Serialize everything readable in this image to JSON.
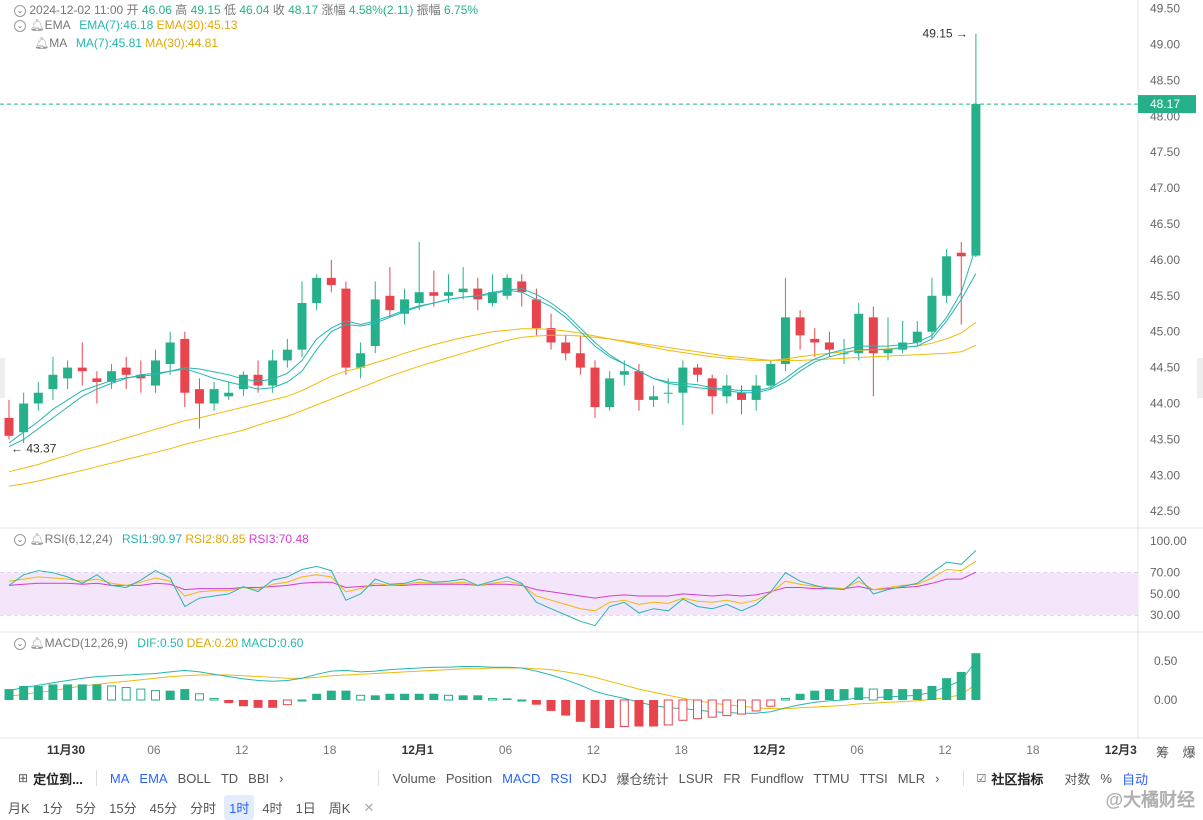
{
  "header": {
    "date": "2024-12-02 11:00",
    "open_label": "开",
    "open": "46.06",
    "high_label": "高",
    "high": "49.15",
    "low_label": "低",
    "low": "46.04",
    "close_label": "收",
    "close": "48.17",
    "change_label": "涨幅",
    "change": "4.58%(2.11)",
    "amplitude_label": "振幅",
    "amplitude": "6.75%"
  },
  "indicators": {
    "ema": {
      "name": "EMA",
      "ema7": "EMA(7):46.18",
      "ema30": "EMA(30):45.13"
    },
    "ma": {
      "name": "MA",
      "ma7": "MA(7):45.81",
      "ma30": "MA(30):44.81"
    },
    "rsi": {
      "name": "RSI(6,12,24)",
      "rsi1": "RSI1:90.97",
      "rsi2": "RSI2:80.85",
      "rsi3": "RSI3:70.48"
    },
    "macd": {
      "name": "MACD(12,26,9)",
      "dif": "DIF:0.50",
      "dea": "DEA:0.20",
      "macd": "MACD:0.60"
    }
  },
  "annotations": {
    "high_marker": "49.15",
    "low_marker": "43.37",
    "last_price": "48.17"
  },
  "colors": {
    "up": "#26b08a",
    "down": "#e8444e",
    "ema_fast": "#26b6b0",
    "ema_slow": "#f0b90b",
    "rsi1": "#26b6b0",
    "rsi2": "#f0b90b",
    "rsi3": "#d63ad0"
  },
  "chart_data": {
    "type": "candlestick",
    "price_axis": {
      "ticks": [
        "49.50",
        "49.00",
        "48.50",
        "48.00",
        "47.50",
        "47.00",
        "46.50",
        "46.00",
        "45.50",
        "45.00",
        "44.50",
        "44.00",
        "43.50",
        "43.00",
        "42.50"
      ],
      "range": [
        42.28,
        49.55
      ]
    },
    "rsi_axis": {
      "ticks": [
        "100.00",
        "70.00",
        "50.00",
        "30.00"
      ]
    },
    "macd_axis": {
      "ticks": [
        "0.50",
        "0.00"
      ]
    },
    "x_ticks": [
      "11月30",
      "06",
      "12",
      "18",
      "12月1",
      "06",
      "12",
      "18",
      "12月2",
      "06",
      "12",
      "18",
      "12月3"
    ],
    "candles": [
      [
        43.8,
        43.55,
        44.05,
        43.5
      ],
      [
        43.6,
        44.0,
        44.15,
        43.45
      ],
      [
        44.0,
        44.15,
        44.3,
        43.9
      ],
      [
        44.2,
        44.4,
        44.65,
        44.05
      ],
      [
        44.35,
        44.5,
        44.6,
        44.2
      ],
      [
        44.5,
        44.45,
        44.85,
        44.25
      ],
      [
        44.35,
        44.3,
        44.45,
        44.0
      ],
      [
        44.3,
        44.45,
        44.55,
        44.2
      ],
      [
        44.5,
        44.4,
        44.65,
        44.2
      ],
      [
        44.4,
        44.35,
        44.6,
        44.15
      ],
      [
        44.25,
        44.6,
        44.75,
        44.15
      ],
      [
        44.55,
        44.85,
        45.0,
        44.4
      ],
      [
        44.9,
        44.15,
        45.0,
        43.95
      ],
      [
        44.2,
        44.0,
        44.35,
        43.65
      ],
      [
        44.0,
        44.2,
        44.3,
        43.9
      ],
      [
        44.1,
        44.15,
        44.3,
        44.05
      ],
      [
        44.2,
        44.4,
        44.45,
        44.1
      ],
      [
        44.4,
        44.25,
        44.6,
        44.15
      ],
      [
        44.25,
        44.6,
        44.75,
        44.15
      ],
      [
        44.6,
        44.75,
        44.9,
        44.5
      ],
      [
        44.75,
        45.4,
        45.7,
        44.65
      ],
      [
        45.4,
        45.75,
        45.8,
        45.3
      ],
      [
        45.75,
        45.65,
        46.0,
        45.55
      ],
      [
        45.6,
        44.5,
        45.7,
        44.4
      ],
      [
        44.5,
        44.7,
        44.85,
        44.35
      ],
      [
        44.8,
        45.45,
        45.7,
        44.7
      ],
      [
        45.5,
        45.3,
        45.9,
        45.2
      ],
      [
        45.25,
        45.45,
        45.6,
        45.1
      ],
      [
        45.4,
        45.55,
        46.25,
        45.3
      ],
      [
        45.55,
        45.5,
        45.85,
        45.35
      ],
      [
        45.5,
        45.55,
        45.8,
        45.4
      ],
      [
        45.55,
        45.6,
        45.9,
        45.45
      ],
      [
        45.6,
        45.45,
        45.75,
        45.3
      ],
      [
        45.4,
        45.55,
        45.8,
        45.35
      ],
      [
        45.5,
        45.75,
        45.8,
        45.45
      ],
      [
        45.7,
        45.55,
        45.8,
        45.35
      ],
      [
        45.45,
        45.05,
        45.6,
        44.95
      ],
      [
        45.05,
        44.85,
        45.25,
        44.75
      ],
      [
        44.85,
        44.7,
        44.95,
        44.6
      ],
      [
        44.7,
        44.5,
        44.95,
        44.4
      ],
      [
        44.5,
        43.95,
        44.6,
        43.8
      ],
      [
        43.95,
        44.35,
        44.45,
        43.9
      ],
      [
        44.4,
        44.45,
        44.6,
        44.25
      ],
      [
        44.45,
        44.05,
        44.55,
        43.9
      ],
      [
        44.05,
        44.1,
        44.25,
        43.95
      ],
      [
        44.15,
        44.15,
        44.35,
        44.0
      ],
      [
        44.15,
        44.5,
        44.6,
        43.7
      ],
      [
        44.5,
        44.4,
        44.55,
        44.3
      ],
      [
        44.35,
        44.1,
        44.4,
        43.85
      ],
      [
        44.1,
        44.25,
        44.4,
        44.0
      ],
      [
        44.15,
        44.05,
        44.25,
        43.85
      ],
      [
        44.05,
        44.25,
        44.4,
        43.9
      ],
      [
        44.25,
        44.55,
        44.6,
        44.2
      ],
      [
        44.55,
        45.2,
        45.75,
        44.45
      ],
      [
        45.2,
        44.95,
        45.3,
        44.75
      ],
      [
        44.9,
        44.85,
        45.05,
        44.65
      ],
      [
        44.85,
        44.75,
        45.0,
        44.65
      ],
      [
        44.7,
        44.7,
        44.9,
        44.55
      ],
      [
        44.7,
        45.25,
        45.4,
        44.6
      ],
      [
        45.2,
        44.7,
        45.35,
        44.1
      ],
      [
        44.7,
        44.75,
        45.2,
        44.6
      ],
      [
        44.75,
        44.85,
        45.15,
        44.7
      ],
      [
        44.85,
        45.0,
        45.15,
        44.8
      ],
      [
        45.0,
        45.5,
        45.75,
        44.9
      ],
      [
        45.5,
        46.05,
        46.15,
        45.4
      ],
      [
        46.1,
        46.05,
        46.25,
        45.1
      ],
      [
        46.06,
        48.17,
        49.15,
        46.04
      ]
    ],
    "ema7": [
      43.45,
      43.6,
      43.75,
      43.92,
      44.05,
      44.18,
      44.25,
      44.32,
      44.36,
      44.38,
      44.4,
      44.45,
      44.5,
      44.48,
      44.44,
      44.4,
      44.34,
      44.31,
      44.34,
      44.42,
      44.6,
      44.9,
      45.05,
      45.15,
      45.1,
      45.15,
      45.22,
      45.3,
      45.36,
      45.4,
      45.45,
      45.48,
      45.5,
      45.52,
      45.58,
      45.55,
      45.45,
      45.35,
      45.2,
      45.0,
      44.8,
      44.65,
      44.55,
      44.45,
      44.35,
      44.3,
      44.28,
      44.26,
      44.22,
      44.2,
      44.18,
      44.18,
      44.22,
      44.35,
      44.5,
      44.62,
      44.7,
      44.75,
      44.8,
      44.8,
      44.8,
      44.82,
      44.85,
      44.95,
      45.2,
      45.55,
      46.18
    ],
    "ma7": [
      43.4,
      43.5,
      43.65,
      43.8,
      43.95,
      44.1,
      44.2,
      44.28,
      44.35,
      44.4,
      44.42,
      44.45,
      44.48,
      44.42,
      44.35,
      44.3,
      44.25,
      44.2,
      44.22,
      44.3,
      44.45,
      44.75,
      45.0,
      45.1,
      45.08,
      45.12,
      45.2,
      45.28,
      45.35,
      45.4,
      45.45,
      45.48,
      45.5,
      45.55,
      45.58,
      45.6,
      45.52,
      45.4,
      45.25,
      45.05,
      44.85,
      44.68,
      44.55,
      44.45,
      44.35,
      44.28,
      44.25,
      44.22,
      44.2,
      44.18,
      44.15,
      44.15,
      44.2,
      44.3,
      44.45,
      44.58,
      44.65,
      44.7,
      44.75,
      44.75,
      44.75,
      44.78,
      44.8,
      44.9,
      45.15,
      45.45,
      45.81
    ],
    "ema30": [
      43.05,
      43.1,
      43.15,
      43.22,
      43.28,
      43.35,
      43.4,
      43.46,
      43.52,
      43.58,
      43.64,
      43.7,
      43.76,
      43.8,
      43.85,
      43.9,
      43.95,
      44.0,
      44.05,
      44.1,
      44.18,
      44.28,
      44.38,
      44.45,
      44.5,
      44.57,
      44.63,
      44.7,
      44.76,
      44.82,
      44.87,
      44.92,
      44.96,
      45.0,
      45.02,
      45.04,
      45.04,
      45.03,
      45.01,
      44.98,
      44.94,
      44.9,
      44.86,
      44.82,
      44.78,
      44.74,
      44.71,
      44.68,
      44.65,
      44.63,
      44.61,
      44.6,
      44.6,
      44.62,
      44.65,
      44.68,
      44.7,
      44.72,
      44.74,
      44.75,
      44.76,
      44.78,
      44.8,
      44.84,
      44.9,
      44.98,
      45.13
    ],
    "ma30": [
      42.85,
      42.88,
      42.92,
      42.97,
      43.02,
      43.07,
      43.12,
      43.17,
      43.22,
      43.27,
      43.32,
      43.37,
      43.43,
      43.48,
      43.53,
      43.58,
      43.63,
      43.7,
      43.76,
      43.82,
      43.9,
      43.98,
      44.06,
      44.14,
      44.22,
      44.3,
      44.38,
      44.45,
      44.52,
      44.58,
      44.64,
      44.7,
      44.76,
      44.82,
      44.88,
      44.92,
      44.94,
      44.95,
      44.95,
      44.94,
      44.92,
      44.9,
      44.87,
      44.84,
      44.81,
      44.78,
      44.75,
      44.72,
      44.69,
      44.66,
      44.64,
      44.62,
      44.6,
      44.6,
      44.6,
      44.61,
      44.62,
      44.63,
      44.64,
      44.65,
      44.66,
      44.67,
      44.68,
      44.69,
      44.7,
      44.72,
      44.81
    ],
    "rsi1": [
      58,
      68,
      72,
      70,
      66,
      60,
      68,
      58,
      56,
      63,
      72,
      65,
      38,
      46,
      48,
      50,
      57,
      52,
      63,
      66,
      73,
      76,
      72,
      44,
      50,
      64,
      59,
      60,
      64,
      61,
      62,
      64,
      58,
      62,
      66,
      60,
      42,
      36,
      30,
      24,
      20,
      38,
      42,
      32,
      36,
      34,
      45,
      38,
      36,
      40,
      34,
      40,
      52,
      70,
      62,
      58,
      55,
      54,
      66,
      50,
      54,
      57,
      60,
      70,
      80,
      78,
      90.97
    ],
    "rsi2": [
      62,
      64,
      66,
      65,
      64,
      62,
      64,
      60,
      58,
      61,
      65,
      62,
      48,
      52,
      53,
      53,
      56,
      54,
      59,
      61,
      66,
      68,
      66,
      52,
      55,
      60,
      58,
      59,
      61,
      60,
      60,
      61,
      58,
      60,
      62,
      59,
      48,
      44,
      40,
      36,
      34,
      42,
      44,
      40,
      42,
      41,
      46,
      43,
      42,
      44,
      41,
      44,
      51,
      62,
      59,
      57,
      56,
      55,
      62,
      54,
      56,
      58,
      59,
      65,
      73,
      72,
      80.85
    ],
    "rsi3": [
      58,
      59,
      60,
      60,
      60,
      59,
      60,
      58,
      58,
      58,
      60,
      59,
      54,
      55,
      55,
      55,
      56,
      56,
      57,
      58,
      60,
      61,
      61,
      56,
      57,
      58,
      58,
      58,
      59,
      59,
      59,
      59,
      58,
      59,
      59,
      58,
      54,
      52,
      50,
      48,
      46,
      48,
      49,
      48,
      48,
      48,
      50,
      49,
      48,
      49,
      48,
      49,
      52,
      56,
      56,
      55,
      55,
      55,
      57,
      54,
      55,
      56,
      57,
      60,
      64,
      64,
      70.48
    ],
    "dif": [
      0.12,
      0.16,
      0.19,
      0.22,
      0.25,
      0.28,
      0.3,
      0.31,
      0.32,
      0.33,
      0.34,
      0.36,
      0.38,
      0.36,
      0.33,
      0.3,
      0.27,
      0.25,
      0.24,
      0.25,
      0.28,
      0.33,
      0.37,
      0.38,
      0.36,
      0.37,
      0.39,
      0.4,
      0.41,
      0.42,
      0.42,
      0.43,
      0.43,
      0.42,
      0.42,
      0.41,
      0.37,
      0.32,
      0.26,
      0.19,
      0.11,
      0.06,
      0.02,
      -0.03,
      -0.07,
      -0.1,
      -0.11,
      -0.13,
      -0.15,
      -0.16,
      -0.17,
      -0.17,
      -0.15,
      -0.1,
      -0.06,
      -0.03,
      -0.01,
      0.0,
      0.03,
      0.03,
      0.04,
      0.05,
      0.06,
      0.1,
      0.17,
      0.25,
      0.5
    ],
    "dea": [
      0.05,
      0.07,
      0.1,
      0.12,
      0.15,
      0.18,
      0.2,
      0.22,
      0.24,
      0.26,
      0.28,
      0.3,
      0.31,
      0.32,
      0.32,
      0.32,
      0.31,
      0.3,
      0.29,
      0.28,
      0.28,
      0.29,
      0.31,
      0.32,
      0.33,
      0.34,
      0.35,
      0.36,
      0.37,
      0.38,
      0.39,
      0.4,
      0.4,
      0.41,
      0.41,
      0.41,
      0.4,
      0.39,
      0.36,
      0.33,
      0.29,
      0.24,
      0.19,
      0.14,
      0.1,
      0.06,
      0.02,
      -0.01,
      -0.04,
      -0.06,
      -0.08,
      -0.1,
      -0.11,
      -0.11,
      -0.1,
      -0.09,
      -0.08,
      -0.07,
      -0.05,
      -0.04,
      -0.03,
      -0.02,
      -0.01,
      0.01,
      0.03,
      0.07,
      0.2
    ],
    "macd_hist": [
      0.14,
      0.18,
      0.18,
      0.2,
      0.2,
      0.2,
      0.2,
      0.18,
      0.16,
      0.14,
      0.12,
      0.12,
      0.14,
      0.08,
      0.02,
      -0.04,
      -0.08,
      -0.1,
      -0.1,
      -0.06,
      0.0,
      0.08,
      0.12,
      0.12,
      0.06,
      0.06,
      0.08,
      0.08,
      0.08,
      0.08,
      0.06,
      0.06,
      0.06,
      0.02,
      0.02,
      0.0,
      -0.06,
      -0.14,
      -0.2,
      -0.28,
      -0.36,
      -0.36,
      -0.34,
      -0.34,
      -0.34,
      -0.32,
      -0.26,
      -0.24,
      -0.22,
      -0.2,
      -0.18,
      -0.14,
      -0.08,
      0.02,
      0.08,
      0.12,
      0.14,
      0.14,
      0.16,
      0.14,
      0.14,
      0.14,
      0.14,
      0.18,
      0.28,
      0.36,
      0.6
    ]
  },
  "toolbar": {
    "locate": "定位到...",
    "main_indicators": [
      "MA",
      "EMA",
      "BOLL",
      "TD",
      "BBI"
    ],
    "sub_indicators": [
      "Volume",
      "Position",
      "MACD",
      "RSI",
      "KDJ",
      "爆仓统计",
      "LSUR",
      "FR",
      "Fundflow",
      "TTMU",
      "TTSI",
      "MLR"
    ],
    "community": "社区指标",
    "log": "对数",
    "percent": "%",
    "auto": "自动"
  },
  "side_labels": {
    "chips": "筹",
    "liquidation": "爆"
  },
  "timeframes": [
    "月K",
    "1分",
    "5分",
    "15分",
    "45分",
    "分时",
    "1时",
    "4时",
    "1日",
    "周K"
  ],
  "active_timeframe": "1时",
  "watermark": "@大橘财经"
}
